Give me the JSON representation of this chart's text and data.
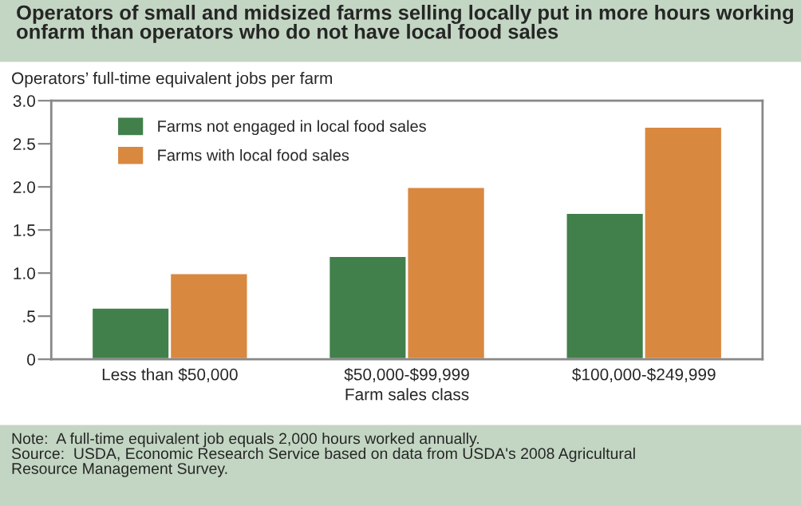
{
  "chart_data": {
    "type": "bar",
    "title": "Operators of small and midsized farms selling locally put in more hours working onfarm than operators who do not have local food sales",
    "ylabel": "Operators’ full-time equivalent jobs per farm",
    "xlabel": "Farm sales class",
    "categories": [
      "Less than $50,000",
      "$50,000-$99,999",
      "$100,000-$249,999"
    ],
    "series": [
      {
        "name": "Farms not engaged in local food sales",
        "color": "#417f4b",
        "values": [
          0.6,
          1.2,
          1.7
        ]
      },
      {
        "name": "Farms with local food sales",
        "color": "#d98840",
        "values": [
          1.0,
          2.0,
          2.7
        ]
      }
    ],
    "ylim": [
      0,
      3.0
    ],
    "yticks": [
      0,
      {
        "value": 0.5,
        "label": ".5"
      },
      {
        "value": 1.0,
        "label": "1.0"
      },
      {
        "value": 1.5,
        "label": "1.5"
      },
      {
        "value": 2.0,
        "label": "2.0"
      },
      {
        "value": 2.5,
        "label": "2.5"
      },
      {
        "value": 3.0,
        "label": "3.0"
      }
    ],
    "grid": false,
    "legend": "top left",
    "annotations": [
      "Note:  A full-time equivalent job equals 2,000 hours worked annually.\nSource:  USDA, Economic Research Service based on data from USDA's 2008 Agricultural\nResource Management Survey."
    ]
  }
}
